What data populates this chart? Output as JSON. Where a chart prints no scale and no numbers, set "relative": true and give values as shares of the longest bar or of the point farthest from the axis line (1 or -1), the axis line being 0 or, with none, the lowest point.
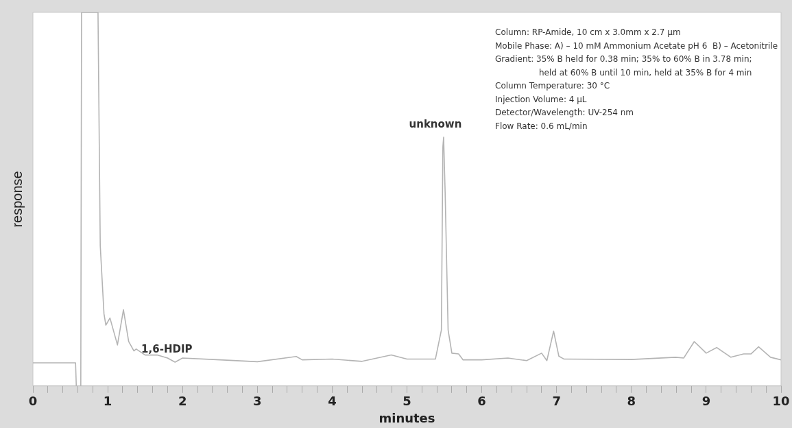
{
  "chart_data": {
    "type": "line",
    "relative": true,
    "xlabel": "minutes",
    "ylabel": "response",
    "xlim": [
      0,
      10
    ],
    "xticks": [
      0,
      {
        "value": 0.2,
        "label": null
      },
      {
        "value": 0.4,
        "label": null
      },
      {
        "value": 0.6,
        "label": null
      },
      {
        "value": 0.8,
        "label": null
      },
      1,
      {
        "value": 1.2,
        "label": null
      },
      {
        "value": 1.4,
        "label": null
      },
      {
        "value": 1.6,
        "label": null
      },
      {
        "value": 1.8,
        "label": null
      },
      2,
      {
        "value": 2.2,
        "label": null
      },
      {
        "value": 2.4,
        "label": null
      },
      {
        "value": 2.6,
        "label": null
      },
      {
        "value": 2.8,
        "label": null
      },
      3,
      {
        "value": 3.2,
        "label": null
      },
      {
        "value": 3.4,
        "label": null
      },
      {
        "value": 3.6,
        "label": null
      },
      {
        "value": 3.8,
        "label": null
      },
      4,
      {
        "value": 4.2,
        "label": null
      },
      {
        "value": 4.4,
        "label": null
      },
      {
        "value": 4.6,
        "label": null
      },
      {
        "value": 4.8,
        "label": null
      },
      5,
      {
        "value": 5.2,
        "label": null
      },
      {
        "value": 5.4,
        "label": null
      },
      {
        "value": 5.6,
        "label": null
      },
      {
        "value": 5.8,
        "label": null
      },
      6,
      {
        "value": 6.2,
        "label": null
      },
      {
        "value": 6.4,
        "label": null
      },
      {
        "value": 6.6,
        "label": null
      },
      {
        "value": 6.8,
        "label": null
      },
      7,
      {
        "value": 7.2,
        "label": null
      },
      {
        "value": 7.4,
        "label": null
      },
      {
        "value": 7.6,
        "label": null
      },
      {
        "value": 7.8,
        "label": null
      },
      8,
      {
        "value": 8.2,
        "label": null
      },
      {
        "value": 8.4,
        "label": null
      },
      {
        "value": 8.6,
        "label": null
      },
      {
        "value": 8.8,
        "label": null
      },
      9,
      {
        "value": 9.2,
        "label": null
      },
      {
        "value": 9.4,
        "label": null
      },
      {
        "value": 9.6,
        "label": null
      },
      {
        "value": 9.8,
        "label": null
      },
      10
    ],
    "tick_labels": "x",
    "grid": false,
    "legend": false,
    "marker": "none",
    "line_style": "solid",
    "x": [
      0,
      0.57,
      0.58,
      0.64,
      0.65,
      0.87,
      0.9,
      0.95,
      0.975,
      1.03,
      1.13,
      1.21,
      1.28,
      1.35,
      1.38,
      1.5,
      1.66,
      1.8,
      1.9,
      2.0,
      2.5,
      3.0,
      3.52,
      3.6,
      4.0,
      4.4,
      4.79,
      5.0,
      5.38,
      5.46,
      5.48,
      5.49,
      5.51,
      5.55,
      5.6,
      5.69,
      5.75,
      6.0,
      6.35,
      6.6,
      6.8,
      6.87,
      6.96,
      7.03,
      7.1,
      8.0,
      8.59,
      8.7,
      8.84,
      9.0,
      9.14,
      9.33,
      9.5,
      9.6,
      9.7,
      9.86,
      10
    ],
    "series": [
      {
        "color": "#b4b4b4",
        "values": [
          0.062,
          0.062,
          0,
          0,
          1,
          1,
          0.376,
          0.193,
          0.163,
          0.182,
          0.11,
          0.204,
          0.119,
          0.094,
          0.099,
          0.083,
          0.083,
          0.075,
          0.064,
          0.075,
          0.07,
          0.065,
          0.079,
          0.07,
          0.072,
          0.066,
          0.083,
          0.072,
          0.072,
          0.15,
          0.64,
          0.666,
          0.52,
          0.15,
          0.088,
          0.086,
          0.07,
          0.07,
          0.075,
          0.068,
          0.088,
          0.068,
          0.147,
          0.08,
          0.072,
          0.071,
          0.077,
          0.075,
          0.119,
          0.088,
          0.103,
          0.077,
          0.086,
          0.086,
          0.105,
          0.077,
          0.07
        ]
      }
    ],
    "annotations": [
      {
        "text": "1,6-HDIP",
        "x": 1.9,
        "y": 0.064
      },
      {
        "text": "unknown",
        "x": 5.49,
        "y": 0.666
      },
      "Column: RP-Amide, 10 cm x 3.0mm x 2.7 µm",
      "Mobile Phase: A) – 10 mM Ammonium Acetate pH 6  B) – Acetonitrile",
      "Gradient: 35% B held for 0.38 min; 35% to 60% B in 3.78 min;",
      "held at 60% B until 10 min, held at 35% B for 4 min",
      "Column Temperature: 30 °C",
      "Injection Volume: 4 µL",
      "Detector/Wavelength: UV-254 nm",
      "Flow Rate: 0.6 mL/min"
    ]
  }
}
